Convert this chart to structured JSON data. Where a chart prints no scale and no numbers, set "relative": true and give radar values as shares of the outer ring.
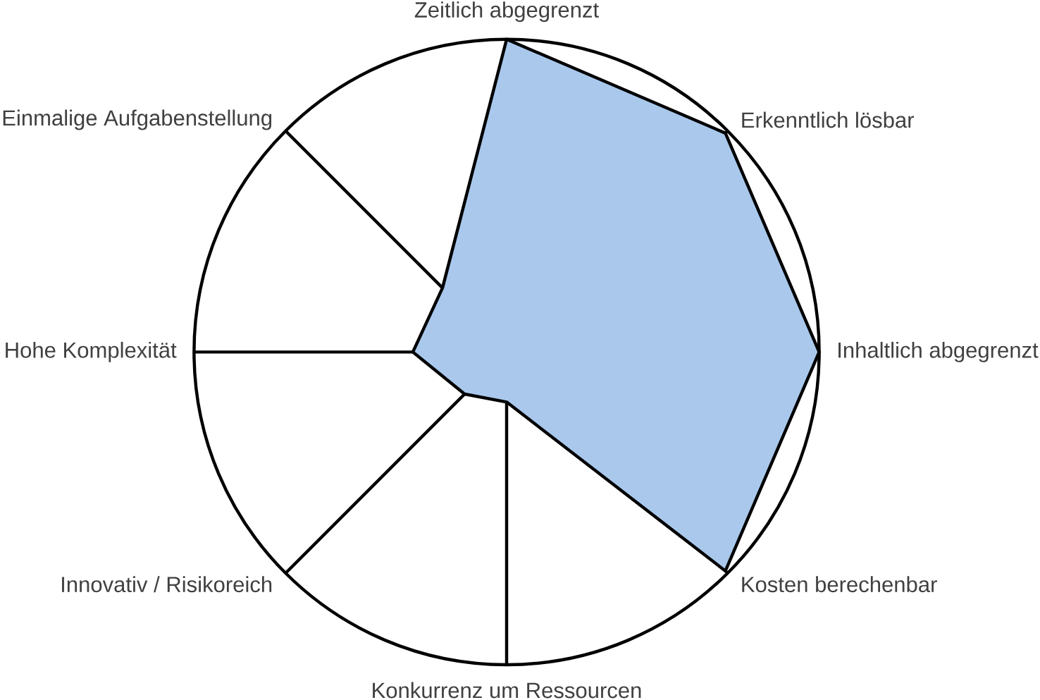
{
  "chart_data": {
    "type": "radar",
    "relative": true,
    "grid": true,
    "categories": [
      "Zeitlich abgegrenzt",
      "Erkenntlich lösbar",
      "Inhaltlich abgegrenzt",
      "Kosten berechenbar",
      "Konkurrenz um Ressourcen",
      "Innovativ / Risikoreich",
      "Hohe Komplexität",
      "Einmalige Aufgabenstellung"
    ],
    "series": [
      {
        "color": "#a9c8ec",
        "values": [
          1.0,
          0.99,
          1.0,
          0.99,
          0.16,
          0.19,
          0.3,
          0.29
        ]
      }
    ]
  }
}
